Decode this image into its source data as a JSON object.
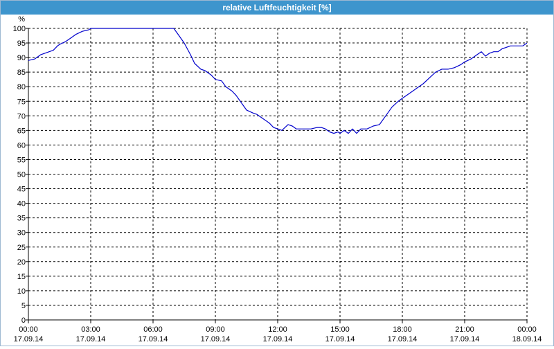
{
  "window": {
    "title": "relative Luftfeuchtigkeit [%]"
  },
  "colors": {
    "title_bar": "#3e95cd",
    "series": "#0000cc",
    "grid": "#000000"
  },
  "chart_data": {
    "type": "line",
    "title": "relative Luftfeuchtigkeit [%]",
    "ylabel": "%",
    "xlabel": "",
    "ylim": [
      0,
      100
    ],
    "ytick_step": 5,
    "xlim_hours": [
      0,
      24
    ],
    "grid": "dashed, on",
    "xticks": [
      {
        "time": "00:00",
        "date": "17.09.14"
      },
      {
        "time": "03:00",
        "date": "17.09.14"
      },
      {
        "time": "06:00",
        "date": "17.09.14"
      },
      {
        "time": "09:00",
        "date": "17.09.14"
      },
      {
        "time": "12:00",
        "date": "17.09.14"
      },
      {
        "time": "15:00",
        "date": "17.09.14"
      },
      {
        "time": "18:00",
        "date": "17.09.14"
      },
      {
        "time": "21:00",
        "date": "17.09.14"
      },
      {
        "time": "00:00",
        "date": "18.09.14"
      }
    ],
    "series": [
      {
        "x": [
          0,
          0.3,
          0.6,
          0.8,
          1.0,
          1.2,
          1.4,
          1.5,
          1.8,
          2.0,
          2.3,
          2.6,
          2.9,
          3.0,
          3.2,
          6.0,
          7.0,
          7.2,
          7.5,
          7.8,
          8.0,
          8.3,
          8.5,
          8.8,
          9.0,
          9.3,
          9.5,
          9.8,
          10.0,
          10.3,
          10.5,
          10.8,
          11.0,
          11.3,
          11.6,
          11.8,
          12.0,
          12.2,
          12.5,
          12.7,
          12.9,
          13.1,
          13.3,
          13.6,
          13.9,
          14.1,
          14.3,
          14.5,
          14.7,
          14.9,
          15.0,
          15.2,
          15.4,
          15.6,
          15.8,
          16.0,
          16.3,
          16.6,
          16.9,
          17.2,
          17.5,
          17.8,
          18.1,
          18.4,
          18.7,
          19.0,
          19.3,
          19.6,
          19.9,
          20.2,
          20.5,
          20.8,
          21.0,
          21.3,
          21.6,
          21.8,
          22.0,
          22.2,
          22.4,
          22.6,
          22.8,
          23.0,
          23.2,
          23.5,
          23.8,
          24.0
        ],
        "y": [
          89,
          89.5,
          91,
          91.5,
          92,
          92.5,
          94,
          94.5,
          95.5,
          96.5,
          98,
          99,
          99.5,
          100,
          100,
          100,
          100,
          98,
          95,
          91,
          88,
          86,
          85.5,
          84,
          82.5,
          82,
          80,
          78.5,
          77,
          74,
          72,
          71,
          70.5,
          69,
          67.5,
          66,
          65.5,
          65,
          67,
          66.5,
          65.5,
          65.5,
          65.5,
          65.5,
          66,
          66,
          65.5,
          64.5,
          64,
          64.5,
          64,
          65,
          64,
          65.5,
          64,
          65.5,
          65.5,
          66.5,
          67,
          70,
          73,
          75,
          76.5,
          78,
          79.5,
          81,
          83,
          85,
          86,
          86,
          86.5,
          87.5,
          88.5,
          89.5,
          91,
          92,
          90.5,
          91.5,
          92,
          92,
          93,
          93.5,
          94,
          94,
          94,
          95
        ]
      }
    ]
  }
}
